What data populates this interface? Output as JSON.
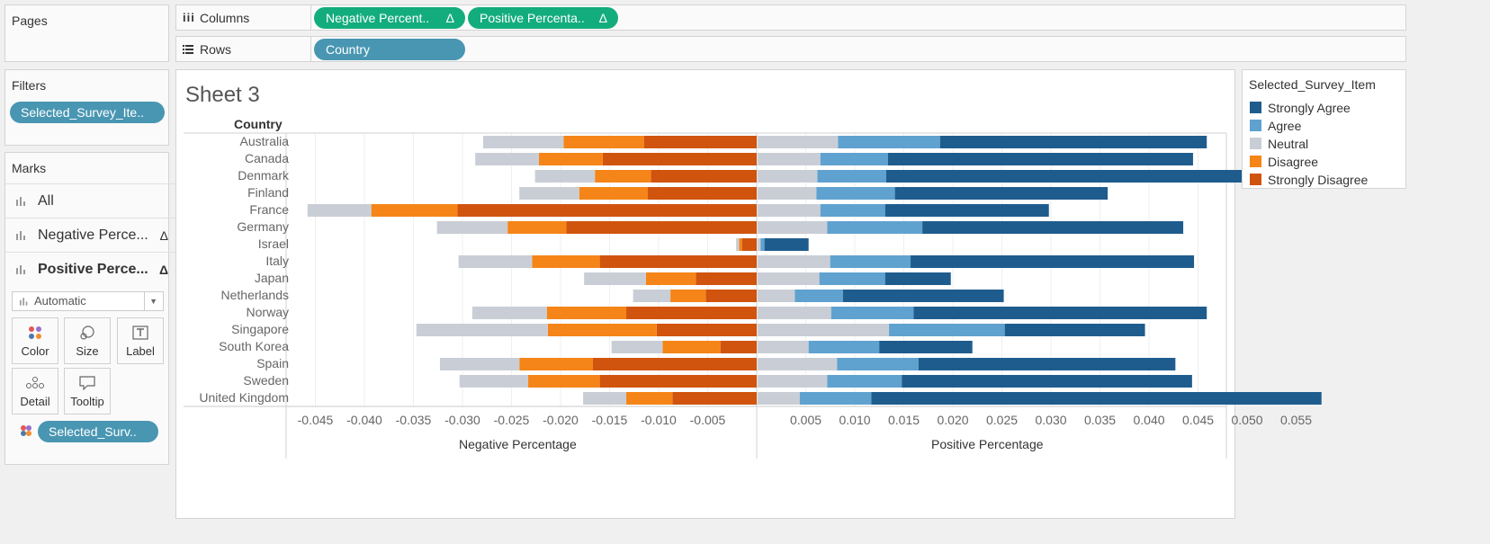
{
  "pages_panel": {
    "title": "Pages"
  },
  "columns_shelf": {
    "icon": "columns-icon",
    "label": "Columns",
    "pills": [
      "Negative Percent..",
      "Positive Percenta.."
    ],
    "delta": "Δ"
  },
  "rows_shelf": {
    "icon": "rows-icon",
    "label": "Rows",
    "pills": [
      "Country"
    ]
  },
  "filters_panel": {
    "title": "Filters",
    "pill": "Selected_Survey_Ite.."
  },
  "marks_panel": {
    "title": "Marks",
    "rows": [
      {
        "label": "All",
        "delta": ""
      },
      {
        "label": "Negative Perce...",
        "delta": "Δ"
      },
      {
        "label": "Positive Perce...",
        "delta": "Δ"
      }
    ],
    "mark_type": "Automatic",
    "buttons": [
      {
        "label": "Color",
        "icon": "color-dots-icon"
      },
      {
        "label": "Size",
        "icon": "size-icon"
      },
      {
        "label": "Label",
        "icon": "label-t-icon"
      },
      {
        "label": "Detail",
        "icon": "detail-dots-icon"
      },
      {
        "label": "Tooltip",
        "icon": "tooltip-bubble-icon"
      }
    ],
    "color_pill": "Selected_Surv.."
  },
  "sheet": {
    "title": "Sheet 3",
    "row_header": "Country"
  },
  "legend": {
    "title": "Selected_Survey_Item",
    "items": [
      {
        "label": "Strongly Agree",
        "color": "#1f5c8e"
      },
      {
        "label": "Agree",
        "color": "#5fa2d0"
      },
      {
        "label": "Neutral",
        "color": "#c9ced6"
      },
      {
        "label": "Disagree",
        "color": "#f58518"
      },
      {
        "label": "Strongly Disagree",
        "color": "#d0540e"
      }
    ]
  },
  "chart_data": {
    "type": "bar",
    "orientation": "horizontal",
    "stacked": true,
    "categories": [
      "Australia",
      "Canada",
      "Denmark",
      "Finland",
      "France",
      "Germany",
      "Israel",
      "Italy",
      "Japan",
      "Netherlands",
      "Norway",
      "Singapore",
      "South Korea",
      "Spain",
      "Sweden",
      "United Kingdom"
    ],
    "negative_panel": {
      "xlabel": "Negative Percentage",
      "xlim": [
        -0.048,
        0
      ],
      "ticks": [
        "-0.045",
        "-0.040",
        "-0.035",
        "-0.030",
        "-0.025",
        "-0.020",
        "-0.015",
        "-0.010",
        "-0.005"
      ],
      "tick_values": [
        -0.045,
        -0.04,
        -0.035,
        -0.03,
        -0.025,
        -0.02,
        -0.015,
        -0.01,
        -0.005
      ],
      "series": [
        {
          "name": "Strongly Disagree",
          "color": "#d0540e",
          "values": [
            0.0115,
            0.0157,
            0.0108,
            0.0111,
            0.0305,
            0.0194,
            0.0015,
            0.016,
            0.0062,
            0.0052,
            0.0133,
            0.0102,
            0.0037,
            0.0167,
            0.016,
            0.0086
          ]
        },
        {
          "name": "Disagree",
          "color": "#f58518",
          "values": [
            0.0082,
            0.0065,
            0.0057,
            0.007,
            0.0088,
            0.006,
            0.0003,
            0.0069,
            0.0051,
            0.0036,
            0.0081,
            0.0111,
            0.0059,
            0.0075,
            0.0073,
            0.0047
          ]
        },
        {
          "name": "Neutral",
          "color": "#c9ced6",
          "values": [
            0.0082,
            0.0065,
            0.0061,
            0.0061,
            0.0065,
            0.0072,
            0.0003,
            0.0075,
            0.0063,
            0.0038,
            0.0076,
            0.0134,
            0.0052,
            0.0081,
            0.007,
            0.0044
          ]
        }
      ]
    },
    "positive_panel": {
      "xlabel": "Positive Percentage",
      "xlim": [
        0,
        0.0575
      ],
      "ticks": [
        "0.005",
        "0.010",
        "0.015",
        "0.020",
        "0.025",
        "0.030",
        "0.035",
        "0.040",
        "0.045",
        "0.050",
        "0.055"
      ],
      "tick_values": [
        0.005,
        0.01,
        0.015,
        0.02,
        0.025,
        0.03,
        0.035,
        0.04,
        0.045,
        0.05,
        0.055
      ],
      "series": [
        {
          "name": "Neutral",
          "color": "#c9ced6",
          "values": [
            0.0082,
            0.0064,
            0.0061,
            0.006,
            0.0064,
            0.0071,
            0.0003,
            0.0074,
            0.0063,
            0.0038,
            0.0075,
            0.0134,
            0.0052,
            0.0081,
            0.0071,
            0.0043
          ]
        },
        {
          "name": "Agree",
          "color": "#5fa2d0",
          "values": [
            0.0104,
            0.0069,
            0.007,
            0.008,
            0.0066,
            0.0097,
            0.0004,
            0.0082,
            0.0067,
            0.0049,
            0.0084,
            0.0118,
            0.0072,
            0.0083,
            0.0076,
            0.0073
          ]
        },
        {
          "name": "Strongly Agree",
          "color": "#1f5c8e",
          "values": [
            0.0272,
            0.0311,
            0.0401,
            0.0217,
            0.0167,
            0.0266,
            0.0045,
            0.0289,
            0.0067,
            0.0164,
            0.0299,
            0.0143,
            0.0095,
            0.0262,
            0.0296,
            0.0459
          ]
        }
      ]
    },
    "grid": true
  }
}
